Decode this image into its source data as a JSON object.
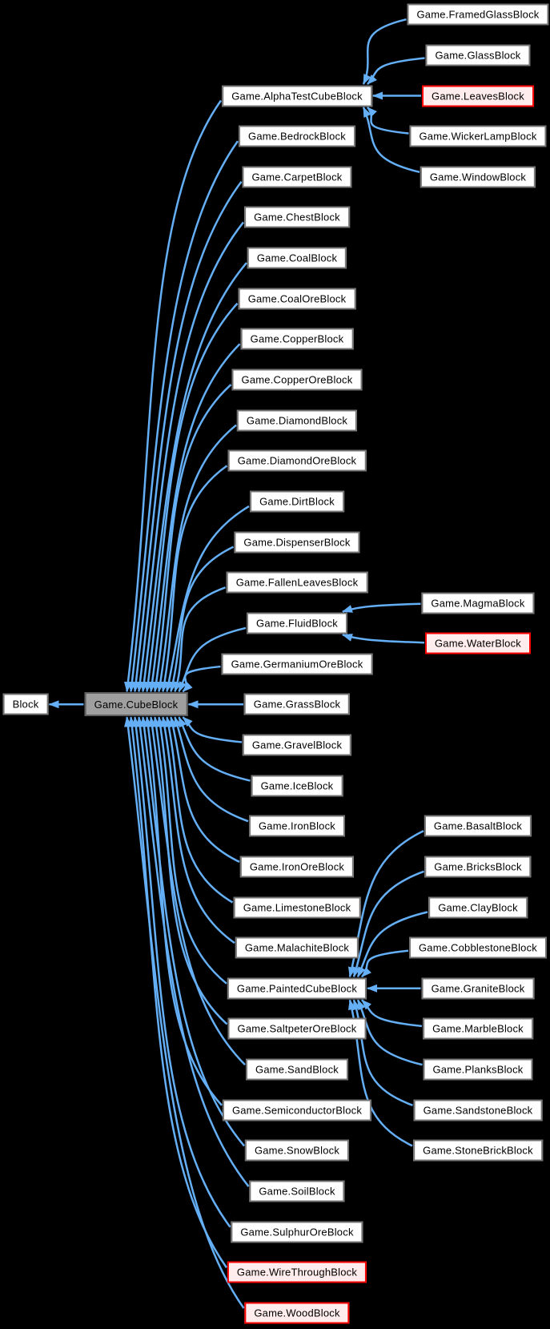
{
  "diagram": {
    "kind": "class-inheritance-graph",
    "colors": {
      "background": "#000000",
      "edge": "#64aff5",
      "node_fill": "#ffffff",
      "node_border": "#757575",
      "node_text": "#000000",
      "highlight_fill": "#9f9f9f",
      "highlight_border": "#5f5f5f",
      "danger_fill": "#ffecec",
      "danger_border": "#ff0000"
    },
    "nodes": [
      {
        "id": "Block",
        "label": "Block",
        "column": "left",
        "row": 15,
        "variant": "default"
      },
      {
        "id": "Game.CubeBlock",
        "label": "Game.CubeBlock",
        "column": "base",
        "row": 15,
        "variant": "highlight"
      },
      {
        "id": "Game.AlphaTestCubeBlock",
        "label": "Game.AlphaTestCubeBlock",
        "column": "middle",
        "row": 0,
        "variant": "default"
      },
      {
        "id": "Game.BedrockBlock",
        "label": "Game.BedrockBlock",
        "column": "middle",
        "row": 1,
        "variant": "default"
      },
      {
        "id": "Game.CarpetBlock",
        "label": "Game.CarpetBlock",
        "column": "middle",
        "row": 2,
        "variant": "default"
      },
      {
        "id": "Game.ChestBlock",
        "label": "Game.ChestBlock",
        "column": "middle",
        "row": 3,
        "variant": "default"
      },
      {
        "id": "Game.CoalBlock",
        "label": "Game.CoalBlock",
        "column": "middle",
        "row": 4,
        "variant": "default"
      },
      {
        "id": "Game.CoalOreBlock",
        "label": "Game.CoalOreBlock",
        "column": "middle",
        "row": 5,
        "variant": "default"
      },
      {
        "id": "Game.CopperBlock",
        "label": "Game.CopperBlock",
        "column": "middle",
        "row": 6,
        "variant": "default"
      },
      {
        "id": "Game.CopperOreBlock",
        "label": "Game.CopperOreBlock",
        "column": "middle",
        "row": 7,
        "variant": "default"
      },
      {
        "id": "Game.DiamondBlock",
        "label": "Game.DiamondBlock",
        "column": "middle",
        "row": 8,
        "variant": "default"
      },
      {
        "id": "Game.DiamondOreBlock",
        "label": "Game.DiamondOreBlock",
        "column": "middle",
        "row": 9,
        "variant": "default"
      },
      {
        "id": "Game.DirtBlock",
        "label": "Game.DirtBlock",
        "column": "middle",
        "row": 10,
        "variant": "default"
      },
      {
        "id": "Game.DispenserBlock",
        "label": "Game.DispenserBlock",
        "column": "middle",
        "row": 11,
        "variant": "default"
      },
      {
        "id": "Game.FallenLeavesBlock",
        "label": "Game.FallenLeavesBlock",
        "column": "middle",
        "row": 12,
        "variant": "default"
      },
      {
        "id": "Game.FluidBlock",
        "label": "Game.FluidBlock",
        "column": "middle",
        "row": 13,
        "variant": "default"
      },
      {
        "id": "Game.GermaniumOreBlock",
        "label": "Game.GermaniumOreBlock",
        "column": "middle",
        "row": 14,
        "variant": "default"
      },
      {
        "id": "Game.GrassBlock",
        "label": "Game.GrassBlock",
        "column": "middle",
        "row": 15,
        "variant": "default"
      },
      {
        "id": "Game.GravelBlock",
        "label": "Game.GravelBlock",
        "column": "middle",
        "row": 16,
        "variant": "default"
      },
      {
        "id": "Game.IceBlock",
        "label": "Game.IceBlock",
        "column": "middle",
        "row": 17,
        "variant": "default"
      },
      {
        "id": "Game.IronBlock",
        "label": "Game.IronBlock",
        "column": "middle",
        "row": 18,
        "variant": "default"
      },
      {
        "id": "Game.IronOreBlock",
        "label": "Game.IronOreBlock",
        "column": "middle",
        "row": 19,
        "variant": "default"
      },
      {
        "id": "Game.LimestoneBlock",
        "label": "Game.LimestoneBlock",
        "column": "middle",
        "row": 20,
        "variant": "default"
      },
      {
        "id": "Game.MalachiteBlock",
        "label": "Game.MalachiteBlock",
        "column": "middle",
        "row": 21,
        "variant": "default"
      },
      {
        "id": "Game.PaintedCubeBlock",
        "label": "Game.PaintedCubeBlock",
        "column": "middle",
        "row": 22,
        "variant": "default"
      },
      {
        "id": "Game.SaltpeterOreBlock",
        "label": "Game.SaltpeterOreBlock",
        "column": "middle",
        "row": 23,
        "variant": "default"
      },
      {
        "id": "Game.SandBlock",
        "label": "Game.SandBlock",
        "column": "middle",
        "row": 24,
        "variant": "default"
      },
      {
        "id": "Game.SemiconductorBlock",
        "label": "Game.SemiconductorBlock",
        "column": "middle",
        "row": 25,
        "variant": "default"
      },
      {
        "id": "Game.SnowBlock",
        "label": "Game.SnowBlock",
        "column": "middle",
        "row": 26,
        "variant": "default"
      },
      {
        "id": "Game.SoilBlock",
        "label": "Game.SoilBlock",
        "column": "middle",
        "row": 27,
        "variant": "default"
      },
      {
        "id": "Game.SulphurOreBlock",
        "label": "Game.SulphurOreBlock",
        "column": "middle",
        "row": 28,
        "variant": "default"
      },
      {
        "id": "Game.WireThroughBlock",
        "label": "Game.WireThroughBlock",
        "column": "middle",
        "row": 29,
        "variant": "danger"
      },
      {
        "id": "Game.WoodBlock",
        "label": "Game.WoodBlock",
        "column": "middle",
        "row": 30,
        "variant": "danger"
      },
      {
        "id": "Game.FramedGlassBlock",
        "label": "Game.FramedGlassBlock",
        "column": "right",
        "row": -2,
        "variant": "default"
      },
      {
        "id": "Game.GlassBlock",
        "label": "Game.GlassBlock",
        "column": "right",
        "row": -1,
        "variant": "default"
      },
      {
        "id": "Game.LeavesBlock",
        "label": "Game.LeavesBlock",
        "column": "right",
        "row": 0,
        "variant": "danger"
      },
      {
        "id": "Game.WickerLampBlock",
        "label": "Game.WickerLampBlock",
        "column": "right",
        "row": 1,
        "variant": "default"
      },
      {
        "id": "Game.WindowBlock",
        "label": "Game.WindowBlock",
        "column": "right",
        "row": 2,
        "variant": "default"
      },
      {
        "id": "Game.MagmaBlock",
        "label": "Game.MagmaBlock",
        "column": "right",
        "row": 12.5,
        "variant": "default"
      },
      {
        "id": "Game.WaterBlock",
        "label": "Game.WaterBlock",
        "column": "right",
        "row": 13.5,
        "variant": "danger"
      },
      {
        "id": "Game.BasaltBlock",
        "label": "Game.BasaltBlock",
        "column": "right",
        "row": 18,
        "variant": "default"
      },
      {
        "id": "Game.BricksBlock",
        "label": "Game.BricksBlock",
        "column": "right",
        "row": 19,
        "variant": "default"
      },
      {
        "id": "Game.ClayBlock",
        "label": "Game.ClayBlock",
        "column": "right",
        "row": 20,
        "variant": "default"
      },
      {
        "id": "Game.CobblestoneBlock",
        "label": "Game.CobblestoneBlock",
        "column": "right",
        "row": 21,
        "variant": "default"
      },
      {
        "id": "Game.GraniteBlock",
        "label": "Game.GraniteBlock",
        "column": "right",
        "row": 22,
        "variant": "default"
      },
      {
        "id": "Game.MarbleBlock",
        "label": "Game.MarbleBlock",
        "column": "right",
        "row": 23,
        "variant": "default"
      },
      {
        "id": "Game.PlanksBlock",
        "label": "Game.PlanksBlock",
        "column": "right",
        "row": 24,
        "variant": "default"
      },
      {
        "id": "Game.SandstoneBlock",
        "label": "Game.SandstoneBlock",
        "column": "right",
        "row": 25,
        "variant": "default"
      },
      {
        "id": "Game.StoneBrickBlock",
        "label": "Game.StoneBrickBlock",
        "column": "right",
        "row": 26,
        "variant": "default"
      }
    ],
    "edges": [
      {
        "from": "Game.CubeBlock",
        "to": "Block"
      },
      {
        "from": "Game.AlphaTestCubeBlock",
        "to": "Game.CubeBlock"
      },
      {
        "from": "Game.BedrockBlock",
        "to": "Game.CubeBlock"
      },
      {
        "from": "Game.CarpetBlock",
        "to": "Game.CubeBlock"
      },
      {
        "from": "Game.ChestBlock",
        "to": "Game.CubeBlock"
      },
      {
        "from": "Game.CoalBlock",
        "to": "Game.CubeBlock"
      },
      {
        "from": "Game.CoalOreBlock",
        "to": "Game.CubeBlock"
      },
      {
        "from": "Game.CopperBlock",
        "to": "Game.CubeBlock"
      },
      {
        "from": "Game.CopperOreBlock",
        "to": "Game.CubeBlock"
      },
      {
        "from": "Game.DiamondBlock",
        "to": "Game.CubeBlock"
      },
      {
        "from": "Game.DiamondOreBlock",
        "to": "Game.CubeBlock"
      },
      {
        "from": "Game.DirtBlock",
        "to": "Game.CubeBlock"
      },
      {
        "from": "Game.DispenserBlock",
        "to": "Game.CubeBlock"
      },
      {
        "from": "Game.FallenLeavesBlock",
        "to": "Game.CubeBlock"
      },
      {
        "from": "Game.FluidBlock",
        "to": "Game.CubeBlock"
      },
      {
        "from": "Game.GermaniumOreBlock",
        "to": "Game.CubeBlock"
      },
      {
        "from": "Game.GrassBlock",
        "to": "Game.CubeBlock"
      },
      {
        "from": "Game.GravelBlock",
        "to": "Game.CubeBlock"
      },
      {
        "from": "Game.IceBlock",
        "to": "Game.CubeBlock"
      },
      {
        "from": "Game.IronBlock",
        "to": "Game.CubeBlock"
      },
      {
        "from": "Game.IronOreBlock",
        "to": "Game.CubeBlock"
      },
      {
        "from": "Game.LimestoneBlock",
        "to": "Game.CubeBlock"
      },
      {
        "from": "Game.MalachiteBlock",
        "to": "Game.CubeBlock"
      },
      {
        "from": "Game.PaintedCubeBlock",
        "to": "Game.CubeBlock"
      },
      {
        "from": "Game.SaltpeterOreBlock",
        "to": "Game.CubeBlock"
      },
      {
        "from": "Game.SandBlock",
        "to": "Game.CubeBlock"
      },
      {
        "from": "Game.SemiconductorBlock",
        "to": "Game.CubeBlock"
      },
      {
        "from": "Game.SnowBlock",
        "to": "Game.CubeBlock"
      },
      {
        "from": "Game.SoilBlock",
        "to": "Game.CubeBlock"
      },
      {
        "from": "Game.SulphurOreBlock",
        "to": "Game.CubeBlock"
      },
      {
        "from": "Game.WireThroughBlock",
        "to": "Game.CubeBlock"
      },
      {
        "from": "Game.WoodBlock",
        "to": "Game.CubeBlock"
      },
      {
        "from": "Game.FramedGlassBlock",
        "to": "Game.AlphaTestCubeBlock"
      },
      {
        "from": "Game.GlassBlock",
        "to": "Game.AlphaTestCubeBlock"
      },
      {
        "from": "Game.LeavesBlock",
        "to": "Game.AlphaTestCubeBlock"
      },
      {
        "from": "Game.WickerLampBlock",
        "to": "Game.AlphaTestCubeBlock"
      },
      {
        "from": "Game.WindowBlock",
        "to": "Game.AlphaTestCubeBlock"
      },
      {
        "from": "Game.MagmaBlock",
        "to": "Game.FluidBlock"
      },
      {
        "from": "Game.WaterBlock",
        "to": "Game.FluidBlock"
      },
      {
        "from": "Game.BasaltBlock",
        "to": "Game.PaintedCubeBlock"
      },
      {
        "from": "Game.BricksBlock",
        "to": "Game.PaintedCubeBlock"
      },
      {
        "from": "Game.ClayBlock",
        "to": "Game.PaintedCubeBlock"
      },
      {
        "from": "Game.CobblestoneBlock",
        "to": "Game.PaintedCubeBlock"
      },
      {
        "from": "Game.GraniteBlock",
        "to": "Game.PaintedCubeBlock"
      },
      {
        "from": "Game.MarbleBlock",
        "to": "Game.PaintedCubeBlock"
      },
      {
        "from": "Game.PlanksBlock",
        "to": "Game.PaintedCubeBlock"
      },
      {
        "from": "Game.SandstoneBlock",
        "to": "Game.PaintedCubeBlock"
      },
      {
        "from": "Game.StoneBrickBlock",
        "to": "Game.PaintedCubeBlock"
      }
    ]
  }
}
